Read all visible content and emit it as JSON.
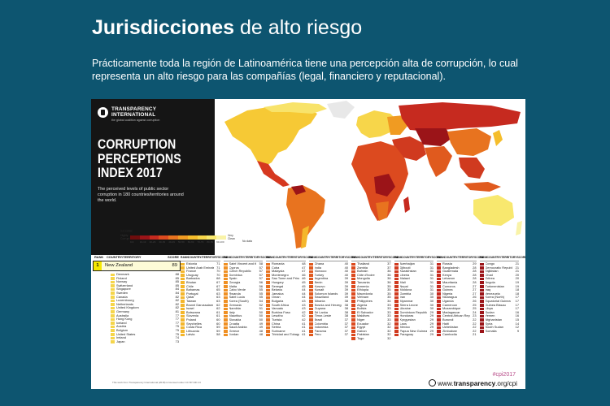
{
  "slide": {
    "title_bold": "Jurisdicciones",
    "title_rest": "de alto riesgo",
    "subtitle": "Prácticamente toda la región de Latinoamérica tiene una percepción alta de corrupción, lo cual representa un alto riesgo para las compañías (legal, financiero y reputacional)."
  },
  "poster": {
    "org_name_line1": "TRANSPARENCY",
    "org_name_line2": "INTERNATIONAL",
    "org_tagline": "the global coalition against corruption",
    "cpi_line1": "CORRUPTION",
    "cpi_line2": "PERCEPTIONS",
    "cpi_line3": "INDEX 2017",
    "description": "The perceived levels of public sector corruption in 180 countries/territories around the world.",
    "legend": {
      "title": "SCORE",
      "low_label": "Highly Corrupt",
      "high_label": "Very Clean",
      "no_data": "No data",
      "ticks": [
        "0-9",
        "10-19",
        "20-29",
        "30-39",
        "40-49",
        "50-59",
        "60-69",
        "70-79",
        "80-89",
        "90-100"
      ],
      "colors": [
        "#6e0d0d",
        "#9b1418",
        "#c62a1f",
        "#dc4a1f",
        "#e8731f",
        "#f09b22",
        "#f5bd2b",
        "#f7d64a",
        "#f8e86e",
        "#f9f3a8"
      ]
    },
    "table": {
      "head_rank": "RANK",
      "head_country": "COUNTRY/TERRITORY",
      "head_score": "SCORE",
      "first_rank": "1",
      "first_country": "New Zealand",
      "first_score": "89"
    },
    "columns": [
      {
        "color": "#f5d54a",
        "rows": [
          [
            "Denmark",
            "88"
          ],
          [
            "Finland",
            "85"
          ],
          [
            "Norway",
            "85"
          ],
          [
            "Switzerland",
            "85"
          ],
          [
            "Singapore",
            "84"
          ],
          [
            "Sweden",
            "84"
          ],
          [
            "Canada",
            "82"
          ],
          [
            "Luxembourg",
            "82"
          ],
          [
            "Netherlands",
            "82"
          ],
          [
            "United Kingdom",
            "82"
          ],
          [
            "Germany",
            "81"
          ],
          [
            "Australia",
            "77"
          ],
          [
            "Hong Kong",
            "77"
          ],
          [
            "Iceland",
            "77"
          ],
          [
            "Austria",
            "75"
          ],
          [
            "Belgium",
            "75"
          ],
          [
            "United States",
            "75"
          ],
          [
            "Ireland",
            "74"
          ],
          [
            "Japan",
            "73"
          ]
        ]
      },
      {
        "color": "#f4b62b",
        "rows": [
          [
            "Estonia",
            "71"
          ],
          [
            "United Arab Emirates",
            "71"
          ],
          [
            "France",
            "70"
          ],
          [
            "Uruguay",
            "70"
          ],
          [
            "Barbados",
            "68"
          ],
          [
            "Bhutan",
            "67"
          ],
          [
            "Chile",
            "67"
          ],
          [
            "Bahamas",
            "65"
          ],
          [
            "Portugal",
            "63"
          ],
          [
            "Qatar",
            "63"
          ],
          [
            "Taiwan",
            "63"
          ],
          [
            "Brunei Darussalam",
            "62"
          ],
          [
            "Israel",
            "62"
          ],
          [
            "Botswana",
            "61"
          ],
          [
            "Slovenia",
            "61"
          ],
          [
            "Poland",
            "60"
          ],
          [
            "Seychelles",
            "60"
          ],
          [
            "Costa Rica",
            "59"
          ],
          [
            "Lithuania",
            "59"
          ],
          [
            "Latvia",
            "58"
          ]
        ]
      },
      {
        "color": "#ef8f22",
        "rows": [
          [
            "Saint Vincent and the Grenadines",
            "58"
          ],
          [
            "Cyprus",
            "57"
          ],
          [
            "Czech Republic",
            "57"
          ],
          [
            "Dominica",
            "57"
          ],
          [
            "Spain",
            "57"
          ],
          [
            "Georgia",
            "56"
          ],
          [
            "Malta",
            "56"
          ],
          [
            "Cabo Verde",
            "55"
          ],
          [
            "Rwanda",
            "55"
          ],
          [
            "Saint Lucia",
            "55"
          ],
          [
            "Korea (South)",
            "54"
          ],
          [
            "Grenada",
            "52"
          ],
          [
            "Namibia",
            "51"
          ],
          [
            "Italy",
            "50"
          ],
          [
            "Mauritius",
            "50"
          ],
          [
            "Slovakia",
            "50"
          ],
          [
            "Croatia",
            "49"
          ],
          [
            "Saudi Arabia",
            "49"
          ],
          [
            "Greece",
            "48"
          ],
          [
            "Jordan",
            "48"
          ]
        ]
      },
      {
        "color": "#e8731f",
        "rows": [
          [
            "Romania",
            "48"
          ],
          [
            "Cuba",
            "47"
          ],
          [
            "Malaysia",
            "47"
          ],
          [
            "Montenegro",
            "46"
          ],
          [
            "Sao Tome and Principe",
            "46"
          ],
          [
            "Hungary",
            "45"
          ],
          [
            "Senegal",
            "45"
          ],
          [
            "Belarus",
            "44"
          ],
          [
            "Jamaica",
            "44"
          ],
          [
            "Oman",
            "44"
          ],
          [
            "Bulgaria",
            "43"
          ],
          [
            "South Africa",
            "43"
          ],
          [
            "Vanuatu",
            "43"
          ],
          [
            "Burkina Faso",
            "42"
          ],
          [
            "Lesotho",
            "42"
          ],
          [
            "Tunisia",
            "42"
          ],
          [
            "China",
            "41"
          ],
          [
            "Serbia",
            "41"
          ],
          [
            "Suriname",
            "41"
          ],
          [
            "Trinidad and Tobago",
            "41"
          ]
        ]
      },
      {
        "color": "#e05a1e",
        "rows": [
          [
            "Ghana",
            "40"
          ],
          [
            "India",
            "40"
          ],
          [
            "Morocco",
            "40"
          ],
          [
            "Turkey",
            "40"
          ],
          [
            "Argentina",
            "39"
          ],
          [
            "Benin",
            "39"
          ],
          [
            "Kosovo",
            "39"
          ],
          [
            "Kuwait",
            "39"
          ],
          [
            "Solomon Islands",
            "39"
          ],
          [
            "Swaziland",
            "39"
          ],
          [
            "Albania",
            "38"
          ],
          [
            "Bosnia and Herzegovina",
            "38"
          ],
          [
            "Guyana",
            "38"
          ],
          [
            "Sri Lanka",
            "38"
          ],
          [
            "Timor-Leste",
            "38"
          ],
          [
            "Brazil",
            "37"
          ],
          [
            "Colombia",
            "37"
          ],
          [
            "Indonesia",
            "37"
          ],
          [
            "Panama",
            "37"
          ],
          [
            "Peru",
            "37"
          ]
        ]
      },
      {
        "color": "#dc4a1f",
        "rows": [
          [
            "Thailand",
            "37"
          ],
          [
            "Zambia",
            "37"
          ],
          [
            "Bahrain",
            "36"
          ],
          [
            "Côte d'Ivoire",
            "36"
          ],
          [
            "Mongolia",
            "36"
          ],
          [
            "Tanzania",
            "36"
          ],
          [
            "Armenia",
            "35"
          ],
          [
            "Ethiopia",
            "35"
          ],
          [
            "Macedonia",
            "35"
          ],
          [
            "Vietnam",
            "35"
          ],
          [
            "Philippines",
            "34"
          ],
          [
            "Algeria",
            "33"
          ],
          [
            "Bolivia",
            "33"
          ],
          [
            "El Salvador",
            "33"
          ],
          [
            "Maldives",
            "33"
          ],
          [
            "Niger",
            "33"
          ],
          [
            "Ecuador",
            "32"
          ],
          [
            "Egypt",
            "32"
          ],
          [
            "Gabon",
            "32"
          ],
          [
            "Pakistan",
            "32"
          ],
          [
            "Togo",
            "32"
          ]
        ]
      },
      {
        "color": "#d03a1f",
        "rows": [
          [
            "Azerbaijan",
            "31"
          ],
          [
            "Djibouti",
            "31"
          ],
          [
            "Kazakhstan",
            "31"
          ],
          [
            "Liberia",
            "31"
          ],
          [
            "Malawi",
            "31"
          ],
          [
            "Mali",
            "31"
          ],
          [
            "Nepal",
            "31"
          ],
          [
            "Moldova",
            "31"
          ],
          [
            "Gambia",
            "30"
          ],
          [
            "Iran",
            "30"
          ],
          [
            "Myanmar",
            "30"
          ],
          [
            "Sierra Leone",
            "30"
          ],
          [
            "Ukraine",
            "30"
          ],
          [
            "Dominican Republic",
            "29"
          ],
          [
            "Honduras",
            "29"
          ],
          [
            "Kyrgyzstan",
            "29"
          ],
          [
            "Laos",
            "29"
          ],
          [
            "Mexico",
            "29"
          ],
          [
            "Papua New Guinea",
            "29"
          ],
          [
            "Paraguay",
            "29"
          ]
        ]
      },
      {
        "color": "#c62a1f",
        "rows": [
          [
            "Russia",
            "29"
          ],
          [
            "Bangladesh",
            "28"
          ],
          [
            "Guatemala",
            "28"
          ],
          [
            "Kenya",
            "28"
          ],
          [
            "Lebanon",
            "28"
          ],
          [
            "Mauritania",
            "28"
          ],
          [
            "Comoros",
            "27"
          ],
          [
            "Guinea",
            "27"
          ],
          [
            "Nigeria",
            "27"
          ],
          [
            "Nicaragua",
            "26"
          ],
          [
            "Uganda",
            "26"
          ],
          [
            "Cameroon",
            "25"
          ],
          [
            "Mozambique",
            "25"
          ],
          [
            "Madagascar",
            "24"
          ],
          [
            "Central African Republic",
            "23"
          ],
          [
            "Burundi",
            "22"
          ],
          [
            "Haiti",
            "22"
          ],
          [
            "Uzbekistan",
            "22"
          ],
          [
            "Zimbabwe",
            "22"
          ],
          [
            "Cambodia",
            "21"
          ]
        ]
      },
      {
        "color": "#9b1418",
        "rows": [
          [
            "Congo",
            "21"
          ],
          [
            "Democratic Republic of Congo",
            "21"
          ],
          [
            "Tajikistan",
            "21"
          ],
          [
            "Chad",
            "20"
          ],
          [
            "Eritrea",
            "20"
          ],
          [
            "Angola",
            "19"
          ],
          [
            "Turkmenistan",
            "19"
          ],
          [
            "Iraq",
            "18"
          ],
          [
            "Venezuela",
            "18"
          ],
          [
            "Korea (North)",
            "17"
          ],
          [
            "Equatorial Guinea",
            "17"
          ],
          [
            "Guinea Bissau",
            "17"
          ],
          [
            "Libya",
            "17"
          ],
          [
            "Sudan",
            "16"
          ],
          [
            "Yemen",
            "16"
          ],
          [
            "Afghanistan",
            "15"
          ],
          [
            "Syria",
            "14"
          ],
          [
            "South Sudan",
            "12"
          ],
          [
            "Somalia",
            "9"
          ]
        ]
      }
    ],
    "footer": {
      "note": "This work from Transparency International (2018) is licensed under CC BY-ND 4.0",
      "hashtag": "#cpi2017",
      "url_prefix": "www.",
      "url_bold": "transparency",
      "url_suffix": ".org/cpi"
    }
  }
}
